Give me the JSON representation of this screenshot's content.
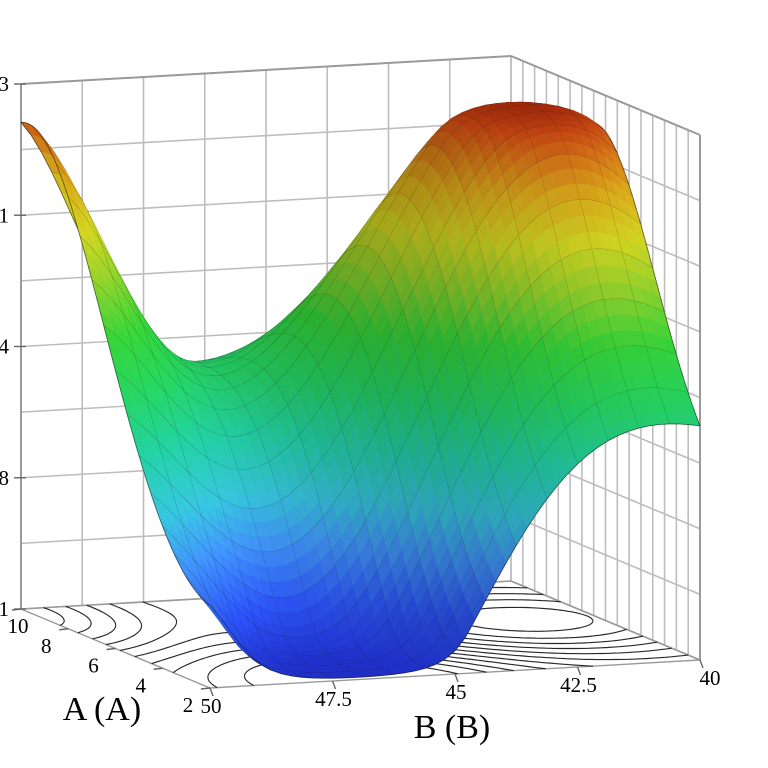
{
  "chart_data": {
    "type": "surface3d",
    "title": "",
    "b_axis": {
      "label": "B (B)",
      "ticks": [
        "50",
        "47.5",
        "45",
        "42.5",
        "40"
      ],
      "range": [
        50,
        40
      ]
    },
    "a_axis": {
      "label": "A (A)",
      "ticks": [
        "10",
        "8",
        "6",
        "4",
        "2"
      ],
      "range": [
        10,
        2
      ]
    },
    "z_axis": {
      "tick_label_fragments": [
        "3",
        "1",
        "4",
        "8",
        "1"
      ]
    },
    "surface_model": {
      "base": 0.38,
      "tilt_front": -0.06,
      "gaussians": [
        {
          "amp": 0.68,
          "cu": 0.85,
          "cv": 0.55,
          "su": 0.16,
          "sv": 0.2
        },
        {
          "amp": 0.58,
          "cu": -0.05,
          "cv": 0.95,
          "su": 0.05,
          "sv": 0.22
        },
        {
          "amp": -0.5,
          "cu": 0.32,
          "cv": 0.02,
          "su": 0.097,
          "sv": 0.18
        }
      ],
      "mesh_divisions": 16,
      "contour_levels": [
        0.05,
        0.14,
        0.23,
        0.32,
        0.41,
        0.5,
        0.59,
        0.68,
        0.77,
        0.86,
        0.95
      ]
    },
    "colormap": [
      {
        "t": 0.0,
        "c": "#1f2ecc"
      },
      {
        "t": 0.1,
        "c": "#2b52ee"
      },
      {
        "t": 0.2,
        "c": "#3e8ef0"
      },
      {
        "t": 0.28,
        "c": "#35bed8"
      },
      {
        "t": 0.38,
        "c": "#22c9a0"
      },
      {
        "t": 0.48,
        "c": "#24cc60"
      },
      {
        "t": 0.58,
        "c": "#33cc37"
      },
      {
        "t": 0.68,
        "c": "#8fc92a"
      },
      {
        "t": 0.76,
        "c": "#c9cc20"
      },
      {
        "t": 0.84,
        "c": "#d0a31a"
      },
      {
        "t": 0.9,
        "c": "#cc7216"
      },
      {
        "t": 0.95,
        "c": "#c24312"
      },
      {
        "t": 1.0,
        "c": "#8e1a0a"
      }
    ],
    "grid": {
      "wall_color": "#bdbdbd",
      "edge_color": "#9a9a9a",
      "axis_edge_color": "#999999",
      "contour_color": "#161616",
      "mesh_line_color": "rgba(20,20,15,0.6)"
    }
  }
}
